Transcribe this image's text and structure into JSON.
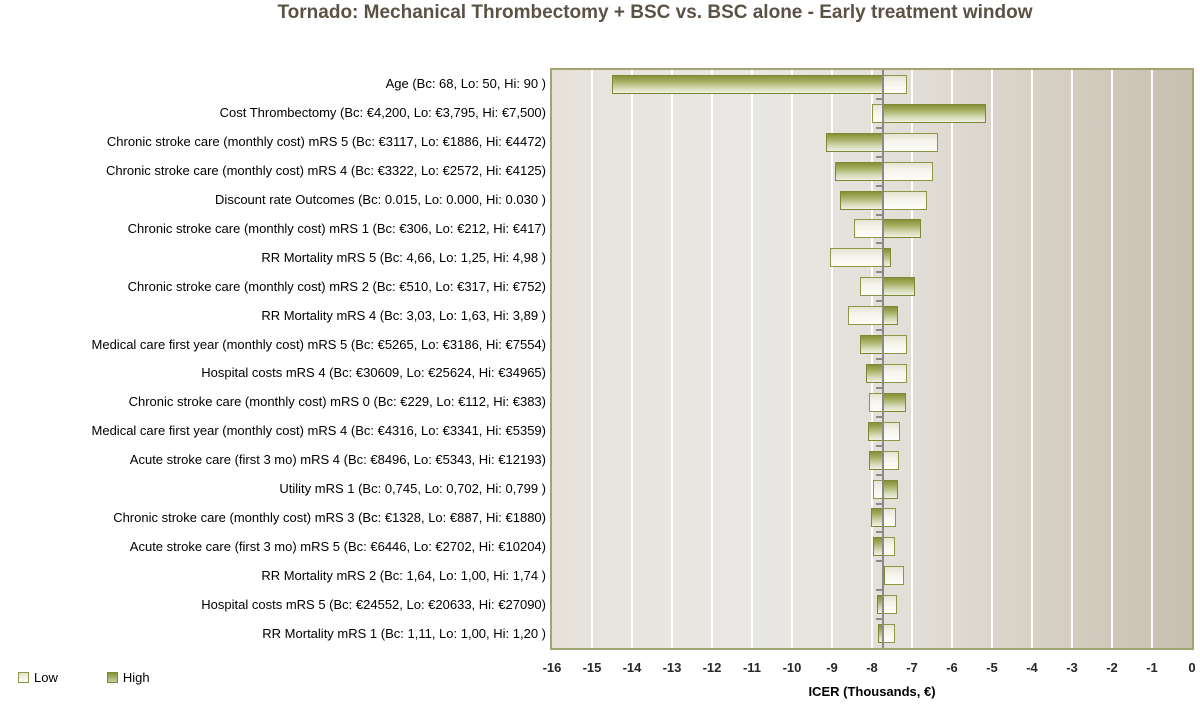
{
  "chart_data": {
    "type": "bar",
    "variant": "tornado",
    "orientation": "horizontal",
    "title": "Tornado: Mechanical Thrombectomy + BSC vs. BSC alone - Early treatment window",
    "xlabel": "ICER (Thousands, €)",
    "xlim": [
      -16,
      0
    ],
    "x_ticks": [
      -16,
      -15,
      -14,
      -13,
      -12,
      -11,
      -10,
      -9,
      -8,
      -7,
      -6,
      -5,
      -4,
      -3,
      -2,
      -1,
      0
    ],
    "grid": true,
    "baseline_value": -7.72,
    "legend": [
      "Low",
      "High"
    ],
    "legend_position": "bottom-left",
    "categories": [
      {
        "label": "Age (Bc: 68, Lo: 50, Hi: 90 )",
        "low": -7.13,
        "high": -14.49
      },
      {
        "label": "Cost Thrombectomy (Bc: €4,200, Lo: €3,795, Hi: €7,500)",
        "low": -7.99,
        "high": -5.16
      },
      {
        "label": "Chronic stroke care (monthly cost) mRS 5 (Bc: €3117, Lo: €1886, Hi: €4472)",
        "low": -6.35,
        "high": -9.14
      },
      {
        "label": "Chronic stroke care (monthly cost) mRS 4 (Bc: €3322, Lo: €2572, Hi: €4125)",
        "low": -6.48,
        "high": -8.92
      },
      {
        "label": "Discount rate Outcomes (Bc: 0.015, Lo: 0.000, Hi: 0.030 )",
        "low": -6.62,
        "high": -8.81
      },
      {
        "label": "Chronic stroke care (monthly cost) mRS 1 (Bc: €306, Lo: €212, Hi: €417)",
        "low": -8.45,
        "high": -6.78
      },
      {
        "label": "RR Mortality mRS 5 (Bc: 4,66, Lo: 1,25, Hi: 4,98 )",
        "low": -9.05,
        "high": -7.52
      },
      {
        "label": "Chronic stroke care (monthly cost) mRS 2 (Bc: €510, Lo: €317, Hi: €752)",
        "low": -8.3,
        "high": -6.93
      },
      {
        "label": "RR Mortality mRS 4 (Bc: 3,03, Lo: 1,63, Hi: 3,89 )",
        "low": -8.59,
        "high": -7.34
      },
      {
        "label": "Medical care first year (monthly cost) mRS 5 (Bc: €5265, Lo: €3186, Hi: €7554)",
        "low": -7.12,
        "high": -8.3
      },
      {
        "label": "Hospital costs mRS 4 (Bc: €30609, Lo: €25624, Hi: €34965)",
        "low": -7.12,
        "high": -8.15
      },
      {
        "label": "Chronic stroke care (monthly cost) mRS 0 (Bc: €229, Lo: €112, Hi: €383)",
        "low": -8.08,
        "high": -7.16
      },
      {
        "label": "Medical care first year (monthly cost) mRS 4 (Bc: €4316, Lo: €3341, Hi: €5359)",
        "low": -7.3,
        "high": -8.1
      },
      {
        "label": "Acute stroke care (first 3 mo) mRS 4 (Bc: €8496, Lo: €5343, Hi: €12193)",
        "low": -7.32,
        "high": -8.08
      },
      {
        "label": "Utility mRS 1 (Bc: 0,745, Lo: 0,702, Hi: 0,799 )",
        "low": -7.97,
        "high": -7.34
      },
      {
        "label": "Chronic stroke care (monthly cost) mRS 3 (Bc: €1328, Lo: €887, Hi: €1880)",
        "low": -7.41,
        "high": -8.02
      },
      {
        "label": "Acute stroke care (first 3 mo) mRS 5 (Bc: €6446, Lo: €2702, Hi: €10204)",
        "low": -7.43,
        "high": -7.98
      },
      {
        "label": "RR Mortality mRS 2 (Bc: 1,64, Lo: 1,00, Hi: 1,74 )",
        "low": -7.2,
        "high": -7.73
      },
      {
        "label": "Hospital costs mRS 5 (Bc: €24552, Lo: €20633, Hi: €27090)",
        "low": -7.38,
        "high": -7.88
      },
      {
        "label": "RR Mortality mRS 1 (Bc: 1,11, Lo: 1,00, Hi: 1,20 )",
        "low": -7.43,
        "high": -7.84
      }
    ]
  },
  "colors": {
    "title_color": "#5a5244",
    "axis_line": "#8a8a8a",
    "grid_line": "#ffffff",
    "plot_border": "#a2a570",
    "plot_bg_left": "#e6e2da",
    "plot_bg_mid": "#e9e8e4",
    "plot_bg_right": "#c7bfaf",
    "high_fill_top": "#86913a",
    "high_fill_bottom": "#eff0e2",
    "high_border": "#7d8834",
    "low_fill_top": "#e7e3d3",
    "low_fill_bottom": "#fdfdfa",
    "low_border": "#8e9544"
  }
}
